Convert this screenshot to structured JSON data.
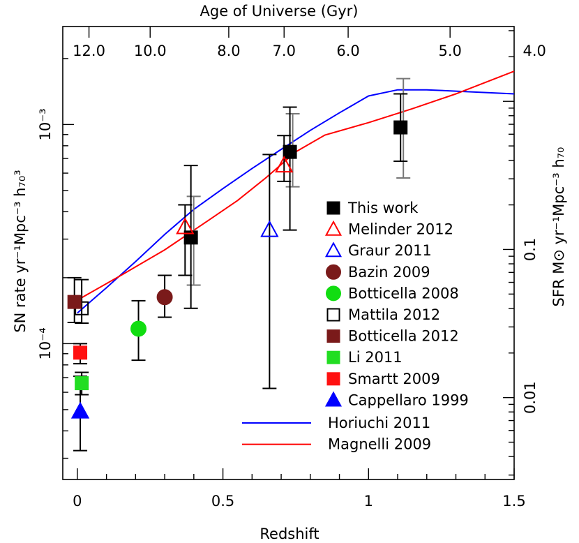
{
  "chart_data": {
    "type": "scatter",
    "title": "Age of Universe (Gyr)",
    "xlabel": "Redshift",
    "ylabel_left": "SN rate yr⁻¹Mpc⁻³ h₇₀³",
    "ylabel_right": "SFR M⊙ yr⁻¹Mpc⁻³ h₇₀",
    "xlim": [
      -0.05,
      1.5
    ],
    "ylim": [
      2.4e-05,
      0.0028
    ],
    "y_scale": "log",
    "right_ylim": [
      0.0028,
      3.2
    ],
    "right_y_scale": "log",
    "x_ticks": [
      {
        "value": 0,
        "label": "0"
      },
      {
        "value": 0.5,
        "label": "0.5"
      },
      {
        "value": 1,
        "label": "1"
      },
      {
        "value": 1.5,
        "label": "1.5"
      }
    ],
    "y_ticks": [
      {
        "value": 0.0001,
        "label": "10⁻⁴"
      },
      {
        "value": 0.001,
        "label": "10⁻³"
      }
    ],
    "right_y_ticks": [
      {
        "value": 0.01,
        "label": "0.01"
      },
      {
        "value": 0.1,
        "label": "0.1"
      }
    ],
    "top_axis_ticks": [
      {
        "z": 0.04,
        "label": "12.0"
      },
      {
        "z": 0.25,
        "label": "10.0"
      },
      {
        "z": 0.52,
        "label": "8.0"
      },
      {
        "z": 0.71,
        "label": "7.0"
      },
      {
        "z": 0.93,
        "label": "6.0"
      },
      {
        "z": 1.28,
        "label": "5.0"
      },
      {
        "z": 1.57,
        "label": "4.0"
      }
    ],
    "legend_position": "lower-right",
    "series": [
      {
        "name": "This work",
        "marker": "square",
        "filled": true,
        "color": "#000000",
        "points": [
          {
            "x": 0.39,
            "y": 0.000305,
            "ylo": 0.000145,
            "yhi": 0.00065,
            "ylo2": 0.000185,
            "yhi2": 0.00047,
            "err_color": "#000000",
            "err2_color": "#777777"
          },
          {
            "x": 0.73,
            "y": 0.00075,
            "ylo": 0.00033,
            "yhi": 0.0012,
            "ylo2": 0.00052,
            "yhi2": 0.00112,
            "err_color": "#000000",
            "err2_color": "#777777"
          },
          {
            "x": 1.11,
            "y": 0.00097,
            "ylo": 0.00068,
            "yhi": 0.00138,
            "ylo2": 0.00057,
            "yhi2": 0.00162,
            "err_color": "#000000",
            "err2_color": "#777777"
          }
        ]
      },
      {
        "name": "Melinder 2012",
        "marker": "triangle",
        "filled": false,
        "color": "#ff0000",
        "points": [
          {
            "x": 0.37,
            "y": 0.00034,
            "ylo": 0.000205,
            "yhi": 0.00043,
            "err_color": "#000000"
          },
          {
            "x": 0.71,
            "y": 0.00065,
            "ylo": 0.00055,
            "yhi": 0.00089,
            "err_color": "#000000"
          }
        ]
      },
      {
        "name": "Graur 2011",
        "marker": "triangle",
        "filled": false,
        "color": "#0000ff",
        "points": [
          {
            "x": 0.66,
            "y": 0.00033,
            "ylo": 6.25e-05,
            "yhi": 0.00073,
            "err_color": "#000000"
          }
        ]
      },
      {
        "name": "Bazin 2009",
        "marker": "circle",
        "filled": true,
        "color": "#7a1a1a",
        "points": [
          {
            "x": 0.3,
            "y": 0.000163,
            "ylo": 0.000132,
            "yhi": 0.000205,
            "err_color": "#000000"
          }
        ]
      },
      {
        "name": "Botticella 2008",
        "marker": "circle",
        "filled": true,
        "color": "#11dd11",
        "points": [
          {
            "x": 0.21,
            "y": 0.000117,
            "ylo": 8.4e-05,
            "yhi": 0.000157,
            "err_color": "#000000"
          }
        ]
      },
      {
        "name": "Mattila 2012",
        "marker": "square",
        "filled": false,
        "color": "#000000",
        "points": [
          {
            "x": 0.015,
            "y": 0.000145,
            "ylo": 0.000124,
            "yhi": 0.000196,
            "err_color": "#000000"
          }
        ]
      },
      {
        "name": "Botticella 2012",
        "marker": "square",
        "filled": true,
        "color": "#7a1a1a",
        "points": [
          {
            "x": -0.01,
            "y": 0.000155,
            "ylo": 0.000125,
            "yhi": 0.0002,
            "err_color": "#000000"
          }
        ]
      },
      {
        "name": "Li 2011",
        "marker": "square",
        "filled": true,
        "color": "#22dd22",
        "points": [
          {
            "x": 0.015,
            "y": 6.6e-05,
            "ylo": 5.85e-05,
            "yhi": 7.4e-05,
            "err_color": "#000000"
          }
        ]
      },
      {
        "name": "Smartt 2009",
        "marker": "square",
        "filled": true,
        "color": "#ff1111",
        "points": [
          {
            "x": 0.01,
            "y": 9.1e-05,
            "ylo": 8.1e-05,
            "yhi": 0.0001,
            "err_color": "#000000"
          }
        ]
      },
      {
        "name": "Cappellaro 1999",
        "marker": "triangle",
        "filled": true,
        "color": "#0000ff",
        "points": [
          {
            "x": 0.01,
            "y": 4.9e-05,
            "ylo": 3.25e-05,
            "yhi": 7.1e-05,
            "err_color": "#000000"
          }
        ]
      }
    ],
    "lines": [
      {
        "name": "Horiuchi 2011",
        "color": "#0000ff",
        "x": [
          0.0,
          0.1,
          0.2,
          0.3,
          0.4,
          0.5,
          0.6,
          0.7,
          0.8,
          0.9,
          1.0,
          1.1,
          1.2,
          1.3,
          1.5
        ],
        "y": [
          0.000138,
          0.00018,
          0.000237,
          0.000315,
          0.00041,
          0.00051,
          0.00063,
          0.00077,
          0.00094,
          0.00113,
          0.00135,
          0.00144,
          0.00144,
          0.00142,
          0.00138
        ]
      },
      {
        "name": "Magnelli 2009",
        "color": "#ff0000",
        "x": [
          0.0,
          0.15,
          0.3,
          0.45,
          0.55,
          0.65,
          0.75,
          0.85,
          1.0,
          1.15,
          1.3,
          1.5
        ],
        "y": [
          0.000158,
          0.000205,
          0.000268,
          0.000365,
          0.00045,
          0.000575,
          0.00075,
          0.000895,
          0.00102,
          0.00118,
          0.00138,
          0.00175
        ]
      }
    ]
  }
}
